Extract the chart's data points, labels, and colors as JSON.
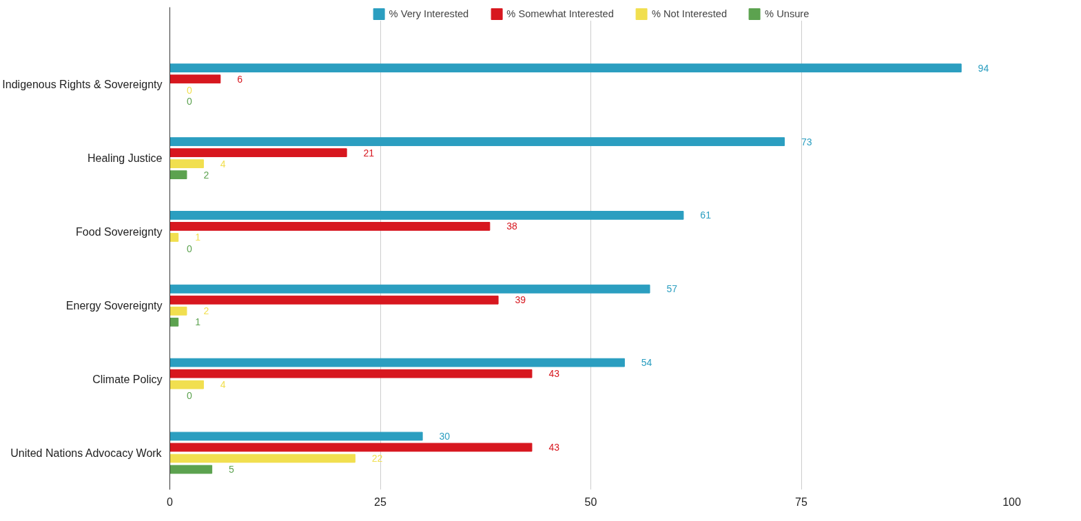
{
  "chart_data": {
    "type": "bar",
    "orientation": "horizontal",
    "categories": [
      "Indigenous Rights & Sovereignty",
      "Healing Justice",
      "Food Sovereignty",
      "Energy Sovereignty",
      "Climate Policy",
      "United Nations Advocacy Work"
    ],
    "series": [
      {
        "name": "% Very Interested",
        "color": "#2b9ec0",
        "values": [
          94,
          73,
          61,
          57,
          54,
          30
        ]
      },
      {
        "name": "% Somewhat Interested",
        "color": "#d7171f",
        "values": [
          6,
          21,
          38,
          39,
          43,
          43
        ]
      },
      {
        "name": "% Not Interested",
        "color": "#f1df4f",
        "values": [
          0,
          4,
          1,
          2,
          4,
          22
        ]
      },
      {
        "name": "% Unsure",
        "color": "#5ca24f",
        "values": [
          0,
          2,
          0,
          1,
          0,
          5
        ]
      }
    ],
    "xlim": [
      0,
      100
    ],
    "xticks": [
      0,
      25,
      50,
      75,
      100
    ],
    "grid": "x",
    "legend": "top",
    "data_labels": true
  }
}
